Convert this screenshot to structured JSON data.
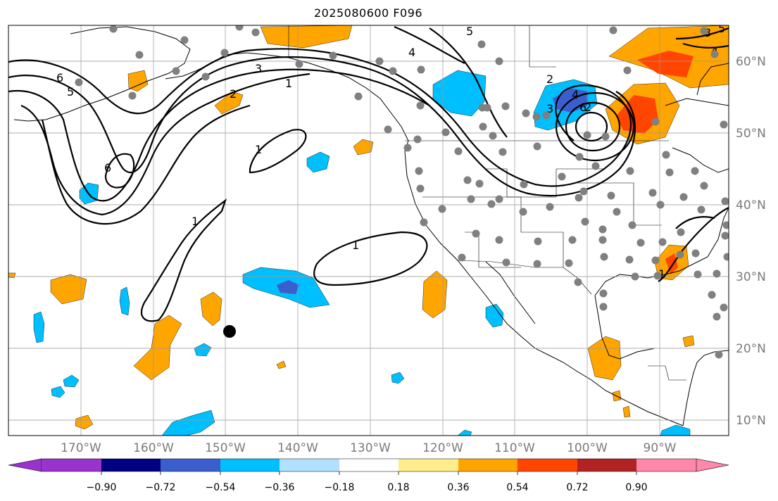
{
  "title": "2025080600 F096",
  "map": {
    "lat_labels": [
      "60°N",
      "50°N",
      "40°N",
      "30°N",
      "20°N",
      "10°N"
    ],
    "lon_labels": [
      "170°W",
      "160°W",
      "150°W",
      "140°W",
      "130°W",
      "120°W",
      "110°W",
      "100°W",
      "90°W"
    ],
    "contour_labels": [
      "6",
      "5",
      "4",
      "3",
      "2",
      "1",
      "2",
      "1",
      "1",
      "1",
      "6",
      "5",
      "4",
      "3",
      "3",
      "4",
      "2",
      "1",
      "5",
      "6"
    ],
    "station_marker_color": "#808080",
    "highlight_marker_color": "#000000"
  },
  "colorbar": {
    "ticks": [
      "−0.90",
      "−0.72",
      "−0.54",
      "−0.36",
      "−0.18",
      "0.18",
      "0.36",
      "0.54",
      "0.72",
      "0.90"
    ],
    "colors": [
      "#9933cc",
      "#000080",
      "#3a5fcd",
      "#00bfff",
      "#b0e2ff",
      "#ffffff",
      "#ffec8b",
      "#ffa500",
      "#ff4500",
      "#b22222",
      "#ff88aa"
    ]
  }
}
